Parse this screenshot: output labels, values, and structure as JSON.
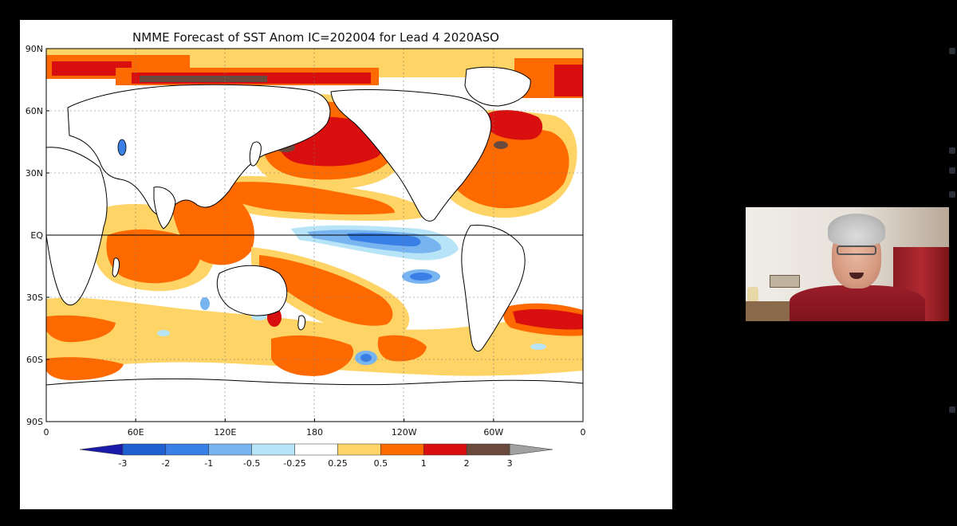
{
  "chart_data": {
    "type": "heatmap",
    "title": "NMME Forecast of SST Anom IC=202004 for Lead 4 2020ASO",
    "x_ticks": [
      "0",
      "60E",
      "120E",
      "180",
      "120W",
      "60W",
      "0"
    ],
    "y_ticks": [
      "90N",
      "60N",
      "30N",
      "EQ",
      "30S",
      "60S",
      "90S"
    ],
    "colorbar_labels": [
      "-3",
      "-2",
      "-1",
      "-0.5",
      "-0.25",
      "0.25",
      "0.5",
      "1",
      "2",
      "3"
    ],
    "colorbar_colors": [
      "#1a1aa8",
      "#1f5fd0",
      "#3a7fe6",
      "#78b4f0",
      "#b8e4f8",
      "#ffffff",
      "#ffd466",
      "#ff6a00",
      "#d90f0f",
      "#6b4a3e",
      "#a0a0a0"
    ],
    "xlim": [
      0,
      360
    ],
    "ylim": [
      -90,
      90
    ],
    "grid": true
  },
  "colors": {
    "background": "#000000",
    "slide": "#ffffff",
    "cold": "#3a7fe6",
    "warm": "#ff6a00",
    "hot": "#d90f0f"
  },
  "video": {
    "participant": "video-tile"
  }
}
